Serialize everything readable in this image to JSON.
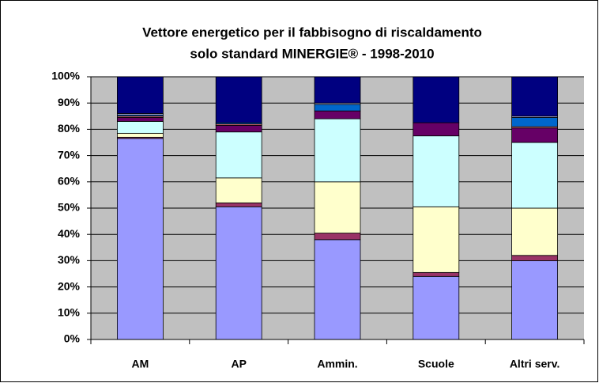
{
  "chart_data": {
    "type": "stacked_bar",
    "title": [
      "Vettore energetico per il fabbisogno di riscaldamento",
      "solo standard MINERGIE® - 1998-2010"
    ],
    "categories": [
      "AM",
      "AP",
      "Ammin.",
      "Scuole",
      "Altri serv."
    ],
    "series": [
      {
        "color": "#9999ff",
        "values": [
          76.5,
          50.5,
          38,
          24,
          30
        ]
      },
      {
        "color": "#993366",
        "values": [
          0.5,
          1.5,
          2.5,
          1.5,
          2
        ]
      },
      {
        "color": "#ffffcc",
        "values": [
          1.5,
          9.5,
          19.5,
          25,
          18
        ]
      },
      {
        "color": "#ccffff",
        "values": [
          4.5,
          17.5,
          24,
          27,
          25
        ]
      },
      {
        "color": "#660066",
        "values": [
          1.5,
          2.5,
          3,
          5,
          5.5
        ]
      },
      {
        "color": "#ff8080",
        "values": [
          0.5,
          0.5,
          0,
          0,
          0.5
        ]
      },
      {
        "color": "#0066cc",
        "values": [
          0.5,
          0.5,
          2.5,
          0,
          3.5
        ]
      },
      {
        "color": "#ccccff",
        "values": [
          0.5,
          0,
          0.5,
          0,
          0.5
        ]
      },
      {
        "color": "#000080",
        "values": [
          14,
          17.5,
          10,
          17.5,
          15
        ]
      }
    ],
    "ylim": [
      0,
      100
    ],
    "yticks": [
      {
        "value": 0,
        "label": "0%"
      },
      {
        "value": 10,
        "label": "10%"
      },
      {
        "value": 20,
        "label": "20%"
      },
      {
        "value": 30,
        "label": "30%"
      },
      {
        "value": 40,
        "label": "40%"
      },
      {
        "value": 50,
        "label": "50%"
      },
      {
        "value": 60,
        "label": "60%"
      },
      {
        "value": 70,
        "label": "70%"
      },
      {
        "value": 80,
        "label": "80%"
      },
      {
        "value": 90,
        "label": "90%"
      },
      {
        "value": 100,
        "label": "100%"
      }
    ],
    "grid": true,
    "plot_background": "#c0c0c0"
  }
}
